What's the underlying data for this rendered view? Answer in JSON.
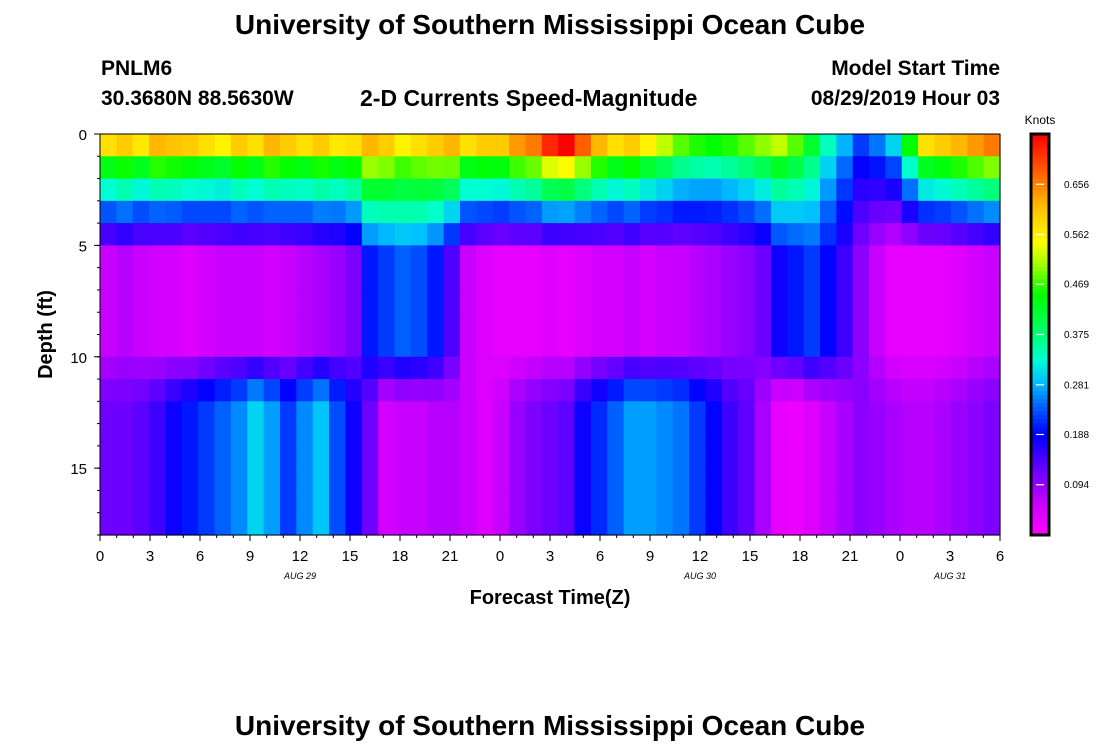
{
  "page": {
    "title": "University of Southern Mississippi Ocean Cube",
    "footer_title": "University of Southern Mississippi Ocean Cube",
    "station": "PNLM6",
    "coords": "30.3680N 88.5630W",
    "subtitle": "2-D Currents Speed-Magnitude",
    "model_label": "Model Start Time",
    "model_time": "08/29/2019 Hour 03"
  },
  "chart_data": {
    "type": "heatmap",
    "title": "2-D Currents Speed-Magnitude",
    "xlabel": "Forecast Time(Z)",
    "ylabel": "Depth (ft)",
    "x_range_hours": [
      0,
      54
    ],
    "x_tick_labels": [
      "0",
      "3",
      "6",
      "9",
      "12",
      "15",
      "18",
      "21",
      "0",
      "3",
      "6",
      "9",
      "12",
      "15",
      "18",
      "21",
      "0",
      "3",
      "6"
    ],
    "date_labels": [
      {
        "label": "AUG 29",
        "hour": 12
      },
      {
        "label": "AUG 30",
        "hour": 36
      },
      {
        "label": "AUG 31",
        "hour": 51
      }
    ],
    "ylim": [
      0,
      18
    ],
    "y_ticks": [
      0,
      5,
      10,
      15
    ],
    "y_tick_labels": [
      "0",
      "5",
      "10",
      "15"
    ],
    "colorbar": {
      "unit": "Knots",
      "range": [
        0,
        0.75
      ],
      "ticks": [
        0.094,
        0.188,
        0.281,
        0.375,
        0.469,
        0.562,
        0.656
      ],
      "tick_labels": [
        "0.094",
        "0.188",
        "0.281",
        "0.375",
        "0.469",
        "0.562",
        "0.656"
      ]
    },
    "time_steps": 55,
    "depth_levels": 18,
    "surface_speed_by_hour": [
      0.58,
      0.6,
      0.57,
      0.62,
      0.61,
      0.6,
      0.58,
      0.56,
      0.6,
      0.58,
      0.62,
      0.6,
      0.58,
      0.6,
      0.57,
      0.58,
      0.62,
      0.6,
      0.56,
      0.58,
      0.6,
      0.62,
      0.58,
      0.6,
      0.6,
      0.64,
      0.66,
      0.72,
      0.75,
      0.68,
      0.62,
      0.58,
      0.6,
      0.56,
      0.52,
      0.48,
      0.46,
      0.45,
      0.46,
      0.48,
      0.5,
      0.52,
      0.48,
      0.42,
      0.34,
      0.28,
      0.22,
      0.25,
      0.3,
      0.45,
      0.58,
      0.6,
      0.62,
      0.64,
      0.66
    ],
    "mid_depth_speed_by_hour": [
      0.06,
      0.07,
      0.06,
      0.05,
      0.05,
      0.04,
      0.05,
      0.06,
      0.06,
      0.06,
      0.05,
      0.06,
      0.07,
      0.08,
      0.09,
      0.11,
      0.2,
      0.22,
      0.24,
      0.23,
      0.2,
      0.14,
      0.06,
      0.04,
      0.03,
      0.03,
      0.03,
      0.04,
      0.03,
      0.04,
      0.05,
      0.05,
      0.06,
      0.05,
      0.06,
      0.06,
      0.07,
      0.08,
      0.09,
      0.1,
      0.12,
      0.18,
      0.2,
      0.22,
      0.19,
      0.15,
      0.1,
      0.06,
      0.03,
      0.03,
      0.03,
      0.03,
      0.04,
      0.05,
      0.06
    ],
    "bottom_speed_by_hour": [
      0.12,
      0.12,
      0.13,
      0.15,
      0.18,
      0.2,
      0.22,
      0.24,
      0.26,
      0.3,
      0.27,
      0.22,
      0.26,
      0.29,
      0.23,
      0.18,
      0.12,
      0.05,
      0.06,
      0.06,
      0.07,
      0.07,
      0.06,
      0.04,
      0.06,
      0.09,
      0.11,
      0.12,
      0.13,
      0.18,
      0.21,
      0.24,
      0.27,
      0.27,
      0.26,
      0.25,
      0.22,
      0.19,
      0.15,
      0.13,
      0.08,
      0.03,
      0.02,
      0.04,
      0.06,
      0.08,
      0.1,
      0.09,
      0.08,
      0.07,
      0.07,
      0.08,
      0.09,
      0.1,
      0.11
    ]
  }
}
